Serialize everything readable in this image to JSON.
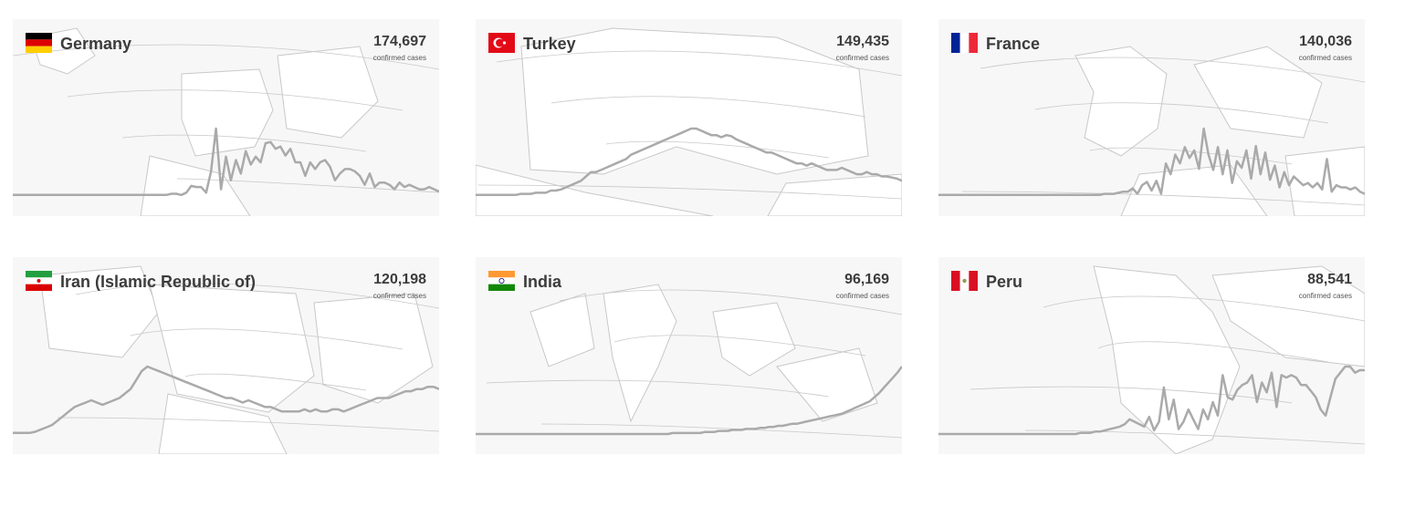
{
  "colors": {
    "card_background": "#f7f7f7",
    "land": "#ffffff",
    "border_lines": "#c8c8c8",
    "sparkline": "#aaaaaa",
    "text": "#3c3c3c"
  },
  "cards": [
    {
      "country": "Germany",
      "count": "174,697",
      "sublabel": "confirmed cases",
      "flag": {
        "type": "h3",
        "colors": [
          "#000000",
          "#dd0000",
          "#ffce00"
        ]
      },
      "icon": "germany-flag-icon",
      "trend": [
        1,
        1,
        1,
        1,
        1,
        1,
        1,
        1,
        1,
        1,
        1,
        1,
        1,
        1,
        1,
        1,
        1,
        1,
        1,
        1,
        1,
        1,
        1,
        1,
        1,
        1,
        1,
        1,
        1,
        1,
        1,
        1,
        2,
        2,
        1,
        3,
        9,
        8,
        8,
        3,
        22,
        60,
        6,
        35,
        14,
        32,
        20,
        40,
        28,
        35,
        30,
        47,
        48,
        42,
        44,
        36,
        42,
        30,
        30,
        18,
        30,
        24,
        30,
        32,
        26,
        14,
        20,
        24,
        24,
        22,
        18,
        10,
        20,
        8,
        12,
        12,
        10,
        6,
        12,
        8,
        10,
        8,
        6,
        6,
        8,
        6,
        4
      ]
    },
    {
      "country": "Turkey",
      "count": "149,435",
      "sublabel": "confirmed cases",
      "flag": {
        "type": "turkey",
        "colors": [
          "#e30a17",
          "#ffffff"
        ]
      },
      "icon": "turkey-flag-icon",
      "trend": [
        1,
        1,
        1,
        1,
        1,
        1,
        1,
        1,
        1,
        2,
        2,
        2,
        3,
        3,
        3,
        5,
        5,
        6,
        8,
        10,
        12,
        14,
        18,
        22,
        22,
        24,
        26,
        28,
        30,
        32,
        34,
        38,
        40,
        42,
        44,
        46,
        48,
        50,
        52,
        54,
        56,
        58,
        60,
        62,
        62,
        60,
        58,
        56,
        56,
        54,
        56,
        55,
        52,
        50,
        48,
        46,
        44,
        42,
        40,
        40,
        38,
        36,
        34,
        32,
        30,
        30,
        28,
        30,
        28,
        26,
        24,
        24,
        24,
        26,
        24,
        22,
        20,
        20,
        22,
        20,
        20,
        18,
        18,
        17,
        16,
        14
      ]
    },
    {
      "country": "France",
      "count": "140,036",
      "sublabel": "confirmed cases",
      "flag": {
        "type": "v3",
        "colors": [
          "#002395",
          "#ffffff",
          "#ed2939"
        ]
      },
      "icon": "france-flag-icon",
      "trend": [
        1,
        1,
        1,
        1,
        1,
        1,
        1,
        1,
        1,
        1,
        1,
        1,
        1,
        1,
        1,
        1,
        1,
        1,
        1,
        1,
        1,
        1,
        1,
        1,
        1,
        1,
        1,
        1,
        1,
        1,
        1,
        1,
        1,
        1,
        1,
        2,
        2,
        2,
        3,
        4,
        4,
        7,
        2,
        10,
        13,
        5,
        14,
        2,
        30,
        20,
        38,
        30,
        45,
        35,
        42,
        25,
        62,
        38,
        24,
        45,
        20,
        42,
        12,
        32,
        26,
        42,
        16,
        46,
        20,
        40,
        15,
        28,
        8,
        22,
        10,
        18,
        14,
        10,
        12,
        8,
        12,
        6,
        34,
        4,
        10,
        8,
        8,
        6,
        8,
        4,
        2
      ]
    },
    {
      "country": "Iran (Islamic Republic of)",
      "count": "120,198",
      "sublabel": "confirmed cases",
      "flag": {
        "type": "iran",
        "colors": [
          "#239f40",
          "#ffffff",
          "#da0000"
        ]
      },
      "icon": "iran-flag-icon",
      "trend": [
        1,
        1,
        1,
        1,
        2,
        4,
        6,
        8,
        12,
        16,
        20,
        24,
        26,
        28,
        30,
        28,
        26,
        28,
        30,
        32,
        36,
        40,
        48,
        56,
        60,
        58,
        56,
        54,
        52,
        50,
        48,
        46,
        44,
        42,
        40,
        38,
        36,
        34,
        32,
        32,
        30,
        28,
        30,
        28,
        26,
        24,
        24,
        22,
        20,
        20,
        20,
        20,
        22,
        20,
        22,
        20,
        20,
        22,
        22,
        20,
        22,
        24,
        26,
        28,
        30,
        32,
        32,
        32,
        34,
        36,
        38,
        38,
        40,
        40,
        42,
        42,
        40
      ]
    },
    {
      "country": "India",
      "count": "96,169",
      "sublabel": "confirmed cases",
      "flag": {
        "type": "india",
        "colors": [
          "#ff9933",
          "#ffffff",
          "#138808",
          "#000080"
        ]
      },
      "icon": "india-flag-icon",
      "trend": [
        0,
        0,
        0,
        0,
        0,
        0,
        0,
        0,
        0,
        0,
        0,
        0,
        0,
        0,
        0,
        0,
        0,
        0,
        0,
        0,
        0,
        0,
        0,
        0,
        0,
        0,
        0,
        0,
        0,
        0,
        0,
        0,
        0,
        0,
        0,
        0,
        0,
        0,
        0,
        0,
        0,
        0,
        0,
        1,
        1,
        1,
        1,
        1,
        1,
        1,
        2,
        2,
        2,
        3,
        3,
        3,
        4,
        4,
        4,
        5,
        5,
        5,
        6,
        6,
        7,
        7,
        8,
        8,
        9,
        10,
        10,
        11,
        12,
        13,
        14,
        15,
        16,
        17,
        18,
        19,
        20,
        22,
        24,
        26,
        28,
        30,
        32,
        36,
        40,
        45,
        50,
        55,
        60,
        66
      ]
    },
    {
      "country": "Peru",
      "count": "88,541",
      "sublabel": "confirmed cases",
      "flag": {
        "type": "peru",
        "colors": [
          "#d91023",
          "#ffffff"
        ]
      },
      "icon": "peru-flag-icon",
      "trend": [
        0,
        0,
        0,
        0,
        0,
        0,
        0,
        0,
        0,
        0,
        0,
        0,
        0,
        0,
        0,
        0,
        0,
        0,
        0,
        0,
        0,
        0,
        0,
        0,
        0,
        0,
        0,
        0,
        0,
        1,
        1,
        1,
        2,
        2,
        3,
        4,
        5,
        6,
        8,
        12,
        10,
        8,
        6,
        14,
        3,
        10,
        38,
        12,
        28,
        4,
        10,
        20,
        12,
        4,
        20,
        12,
        26,
        15,
        48,
        30,
        28,
        36,
        40,
        42,
        48,
        26,
        42,
        34,
        50,
        22,
        48,
        46,
        48,
        46,
        40,
        40,
        35,
        30,
        20,
        15,
        30,
        45,
        50,
        55,
        55,
        50,
        52,
        52
      ]
    }
  ]
}
